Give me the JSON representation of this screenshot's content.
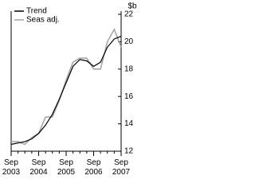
{
  "chart_data": {
    "type": "line",
    "y_axis_label": "$b",
    "categories": [
      "Sep 2003",
      null,
      null,
      null,
      "Sep 2004",
      null,
      null,
      null,
      "Sep 2005",
      null,
      null,
      null,
      "Sep 2006",
      null,
      null,
      null,
      "Sep 2007"
    ],
    "series": [
      {
        "name": "Trend",
        "color": "#000000",
        "values": [
          12.5,
          12.6,
          12.7,
          12.9,
          13.3,
          13.9,
          14.7,
          15.8,
          17.0,
          18.2,
          18.7,
          18.6,
          18.2,
          18.5,
          19.6,
          20.2,
          20.4
        ]
      },
      {
        "name": "Seas adj.",
        "color": "#a6a6a6",
        "values": [
          12.7,
          12.7,
          12.5,
          13.0,
          13.3,
          14.5,
          14.5,
          15.7,
          17.2,
          18.5,
          18.8,
          18.8,
          18.0,
          18.0,
          20.0,
          20.9,
          19.6
        ]
      }
    ],
    "ylim": [
      12,
      22
    ],
    "yticks": [
      12,
      14,
      16,
      18,
      20,
      22
    ],
    "legend": "top-left"
  }
}
